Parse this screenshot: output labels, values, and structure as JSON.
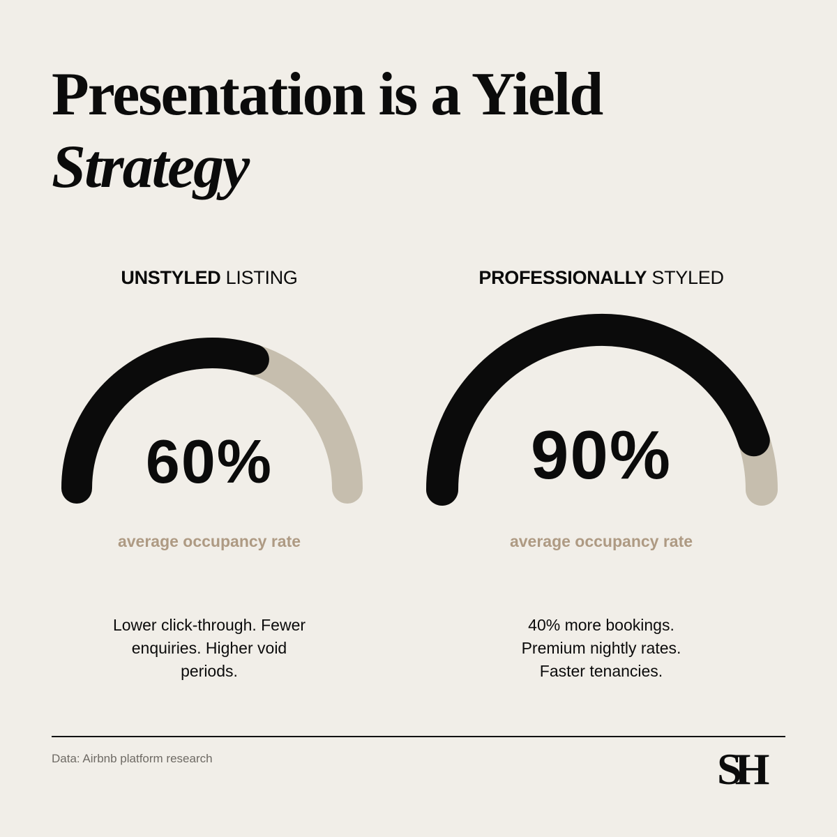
{
  "header": {
    "title_line1": "Presentation is a Yield",
    "title_line2": "Strategy"
  },
  "panels": [
    {
      "heading_bold": "UNSTYLED",
      "heading_regular": " LISTING",
      "value_text": "60%",
      "metric_label": "average occupancy rate",
      "description": "Lower click-through. Fewer enquiries. Higher void periods."
    },
    {
      "heading_bold": "PROFESSIONALLY",
      "heading_regular": " STYLED",
      "value_text": "90%",
      "metric_label": "average occupancy rate",
      "description": "40% more bookings. Premium nightly rates. Faster tenancies."
    }
  ],
  "chart_data": [
    {
      "type": "gauge",
      "category": "UNSTYLED LISTING",
      "value": 60,
      "max": 100,
      "unit": "%"
    },
    {
      "type": "gauge",
      "category": "PROFESSIONALLY STYLED",
      "value": 90,
      "max": 100,
      "unit": "%"
    }
  ],
  "footer": {
    "source": "Data: Airbnb platform research",
    "logo": "SH"
  },
  "colors": {
    "background": "#f1eee8",
    "gauge_fill": "#0b0b0b",
    "gauge_track": "#c6beae",
    "metric_text": "#ae9a83"
  }
}
